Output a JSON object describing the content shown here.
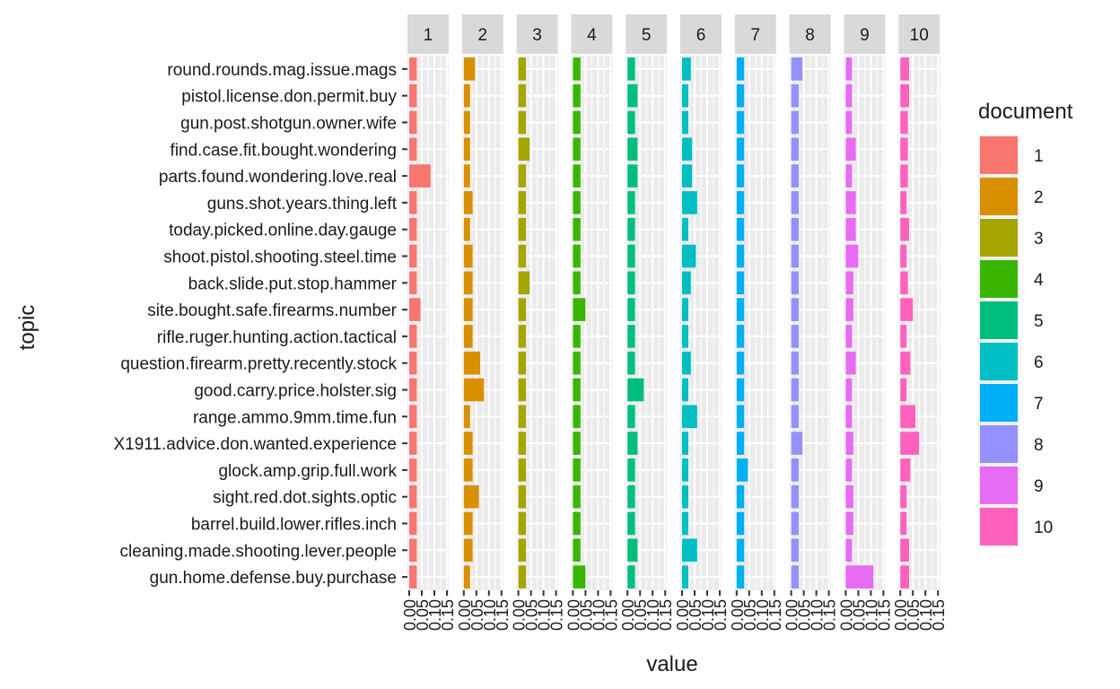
{
  "chart_data": {
    "type": "bar",
    "orientation": "horizontal",
    "facet_by": "document",
    "xlabel": "value",
    "ylabel": "topic",
    "xlim": [
      0,
      0.15
    ],
    "x_ticks": [
      "0.00",
      "0.05",
      "0.10",
      "0.15"
    ],
    "grid": true,
    "legend": {
      "title": "document",
      "placement": "right",
      "entries": [
        "1",
        "2",
        "3",
        "4",
        "5",
        "6",
        "7",
        "8",
        "9",
        "10"
      ]
    },
    "colors": [
      "#F8766D",
      "#D89000",
      "#A3A500",
      "#39B600",
      "#00BF7D",
      "#00BFC4",
      "#00B0F6",
      "#9590FF",
      "#E76BF3",
      "#FF62BC"
    ],
    "categories": [
      "round.rounds.mag.issue.mags",
      "pistol.license.don.permit.buy",
      "gun.post.shotgun.owner.wife",
      "find.case.fit.bought.wondering",
      "parts.found.wondering.love.real",
      "guns.shot.years.thing.left",
      "today.picked.online.day.gauge",
      "shoot.pistol.shooting.steel.time",
      "back.slide.put.stop.hammer",
      "site.bought.safe.firearms.number",
      "rifle.ruger.hunting.action.tactical",
      "question.firearm.pretty.recently.stock",
      "good.carry.price.holster.sig",
      "range.ammo.9mm.time.fun",
      "X1911.advice.don.wanted.experience",
      "glock.amp.grip.full.work",
      "sight.red.dot.sights.optic",
      "barrel.build.lower.rifles.inch",
      "cleaning.made.shooting.lever.people",
      "gun.home.defense.buy.purchase"
    ],
    "series": [
      {
        "name": "1",
        "values": [
          0.03,
          0.03,
          0.03,
          0.03,
          0.085,
          0.03,
          0.03,
          0.03,
          0.03,
          0.045,
          0.03,
          0.03,
          0.03,
          0.03,
          0.03,
          0.03,
          0.03,
          0.03,
          0.03,
          0.03
        ]
      },
      {
        "name": "2",
        "values": [
          0.045,
          0.025,
          0.025,
          0.025,
          0.025,
          0.035,
          0.025,
          0.035,
          0.035,
          0.035,
          0.035,
          0.065,
          0.08,
          0.025,
          0.035,
          0.035,
          0.06,
          0.035,
          0.035,
          0.025
        ]
      },
      {
        "name": "3",
        "values": [
          0.03,
          0.03,
          0.03,
          0.045,
          0.03,
          0.03,
          0.03,
          0.03,
          0.045,
          0.03,
          0.03,
          0.03,
          0.03,
          0.03,
          0.03,
          0.03,
          0.03,
          0.03,
          0.03,
          0.03
        ]
      },
      {
        "name": "4",
        "values": [
          0.03,
          0.03,
          0.03,
          0.03,
          0.03,
          0.03,
          0.03,
          0.03,
          0.03,
          0.05,
          0.03,
          0.03,
          0.03,
          0.03,
          0.03,
          0.03,
          0.03,
          0.03,
          0.03,
          0.05
        ]
      },
      {
        "name": "5",
        "values": [
          0.03,
          0.04,
          0.03,
          0.04,
          0.04,
          0.03,
          0.03,
          0.03,
          0.03,
          0.03,
          0.03,
          0.03,
          0.065,
          0.03,
          0.04,
          0.03,
          0.03,
          0.03,
          0.04,
          0.03
        ]
      },
      {
        "name": "6",
        "values": [
          0.035,
          0.025,
          0.025,
          0.04,
          0.04,
          0.06,
          0.025,
          0.055,
          0.035,
          0.025,
          0.025,
          0.035,
          0.025,
          0.06,
          0.025,
          0.025,
          0.025,
          0.025,
          0.06,
          0.025
        ]
      },
      {
        "name": "7",
        "values": [
          0.03,
          0.03,
          0.03,
          0.03,
          0.03,
          0.03,
          0.03,
          0.03,
          0.03,
          0.03,
          0.03,
          0.03,
          0.03,
          0.03,
          0.03,
          0.045,
          0.03,
          0.03,
          0.03,
          0.03
        ]
      },
      {
        "name": "8",
        "values": [
          0.045,
          0.03,
          0.03,
          0.03,
          0.03,
          0.03,
          0.03,
          0.03,
          0.03,
          0.03,
          0.03,
          0.03,
          0.03,
          0.03,
          0.045,
          0.03,
          0.03,
          0.03,
          0.03,
          0.03
        ]
      },
      {
        "name": "9",
        "values": [
          0.025,
          0.025,
          0.025,
          0.04,
          0.025,
          0.04,
          0.04,
          0.05,
          0.03,
          0.03,
          0.025,
          0.04,
          0.025,
          0.025,
          0.03,
          0.025,
          0.03,
          0.03,
          0.025,
          0.11
        ]
      },
      {
        "name": "10",
        "values": [
          0.035,
          0.035,
          0.03,
          0.03,
          0.03,
          0.025,
          0.035,
          0.025,
          0.03,
          0.05,
          0.025,
          0.04,
          0.025,
          0.06,
          0.075,
          0.04,
          0.025,
          0.025,
          0.035,
          0.035
        ]
      }
    ]
  }
}
